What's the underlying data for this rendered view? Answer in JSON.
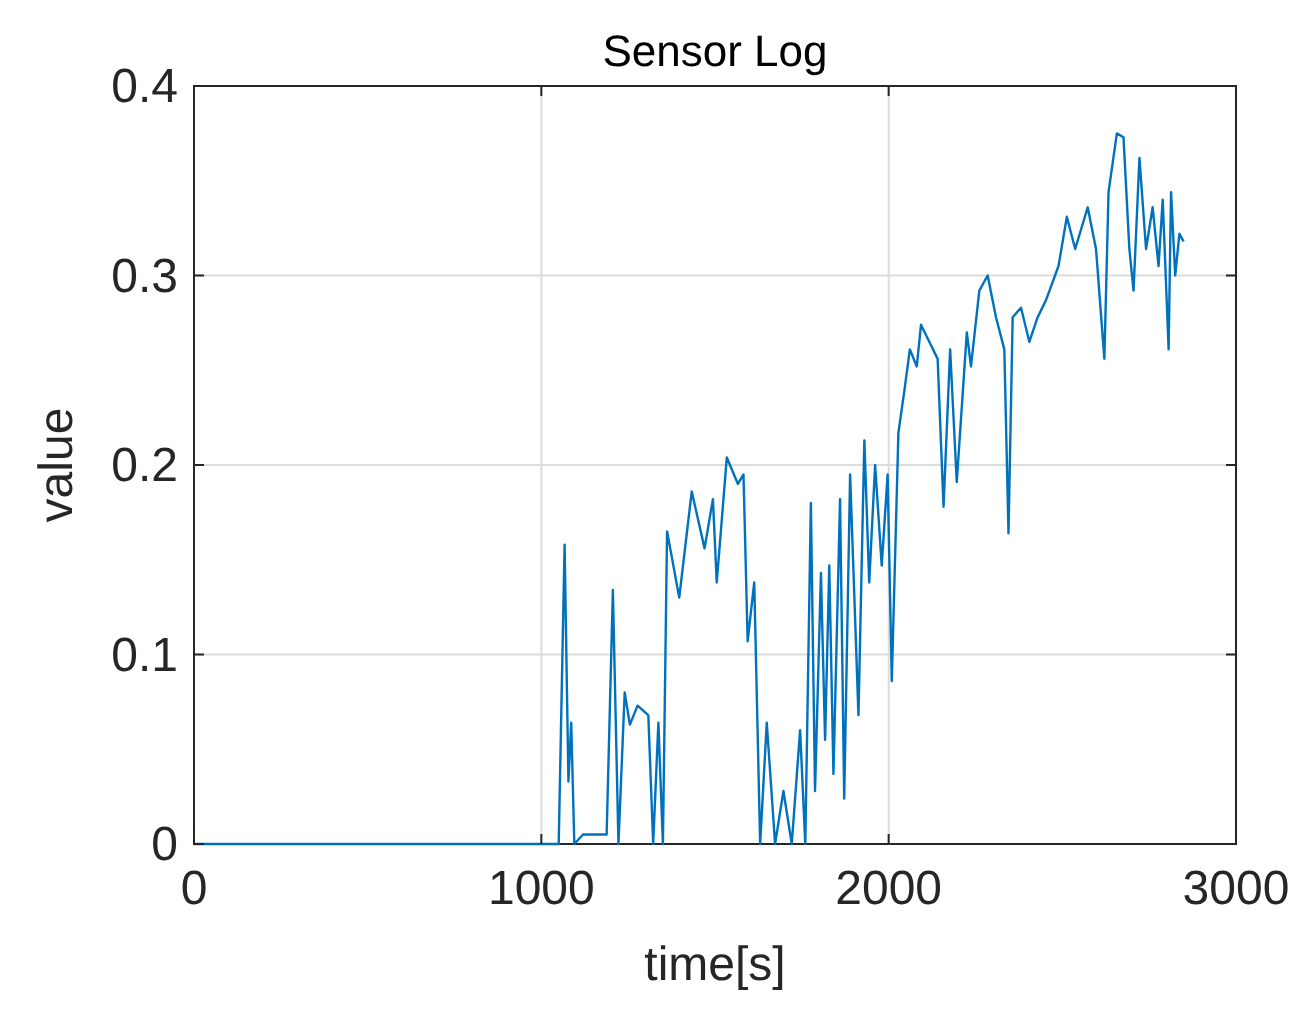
{
  "chart_data": {
    "type": "line",
    "title": "Sensor Log",
    "xlabel": "time[s]",
    "ylabel": "value",
    "xlim": [
      0,
      3000
    ],
    "xticks": [
      0,
      1000,
      2000,
      3000
    ],
    "ylim": [
      0,
      0.4
    ],
    "yticks": [
      0,
      0.1,
      0.2,
      0.3,
      0.4
    ],
    "grid": true,
    "series": [
      {
        "color": "#0072bd",
        "x": [
          0,
          1050,
          1067,
          1078,
          1086,
          1095,
          1120,
          1188,
          1206,
          1222,
          1240,
          1255,
          1277,
          1308,
          1322,
          1337,
          1350,
          1362,
          1397,
          1433,
          1470,
          1494,
          1505,
          1534,
          1566,
          1582,
          1594,
          1613,
          1630,
          1649,
          1673,
          1697,
          1721,
          1745,
          1760,
          1776,
          1788,
          1805,
          1817,
          1829,
          1841,
          1860,
          1872,
          1889,
          1913,
          1930,
          1944,
          1961,
          1980,
          1997,
          2009,
          2028,
          2045,
          2061,
          2081,
          2093,
          2117,
          2141,
          2158,
          2177,
          2196,
          2225,
          2237,
          2261,
          2285,
          2309,
          2333,
          2345,
          2357,
          2381,
          2405,
          2429,
          2453,
          2489,
          2513,
          2537,
          2573,
          2597,
          2621,
          2633,
          2657,
          2676,
          2693,
          2705,
          2722,
          2741,
          2760,
          2777,
          2789,
          2806,
          2813,
          2825,
          2837,
          2849
        ],
        "values": [
          0,
          0,
          0.158,
          0.033,
          0.064,
          0,
          0.005,
          0.005,
          0.134,
          0,
          0.08,
          0.063,
          0.073,
          0.068,
          0,
          0.064,
          0,
          0.165,
          0.13,
          0.186,
          0.156,
          0.182,
          0.138,
          0.204,
          0.19,
          0.195,
          0.107,
          0.138,
          0,
          0.064,
          0,
          0.028,
          0,
          0.06,
          0,
          0.18,
          0.028,
          0.143,
          0.055,
          0.147,
          0.037,
          0.182,
          0.024,
          0.195,
          0.068,
          0.213,
          0.138,
          0.2,
          0.147,
          0.195,
          0.086,
          0.217,
          0.239,
          0.261,
          0.252,
          0.274,
          0.265,
          0.256,
          0.178,
          0.261,
          0.191,
          0.27,
          0.252,
          0.292,
          0.3,
          0.278,
          0.261,
          0.164,
          0.278,
          0.283,
          0.265,
          0.278,
          0.287,
          0.305,
          0.331,
          0.314,
          0.336,
          0.314,
          0.256,
          0.344,
          0.375,
          0.373,
          0.314,
          0.292,
          0.362,
          0.314,
          0.336,
          0.305,
          0.34,
          0.261,
          0.344,
          0.3,
          0.322,
          0.318
        ]
      }
    ]
  }
}
